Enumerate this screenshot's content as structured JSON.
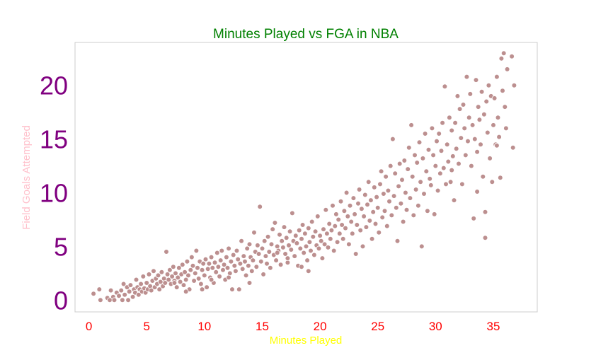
{
  "chart_data": {
    "type": "scatter",
    "title": "Minutes Played vs FGA in NBA",
    "xlabel": "Minutes Played",
    "ylabel": "Field Goals Attempted",
    "xlim": [
      -1.2,
      38.8
    ],
    "ylim": [
      -1.1,
      24.0
    ],
    "xticks": [
      0,
      5,
      10,
      15,
      20,
      25,
      30,
      35
    ],
    "yticks": [
      0,
      5,
      10,
      15,
      20
    ],
    "grid": false,
    "colors": {
      "title": "#008000",
      "xlabel": "#ffff00",
      "ylabel": "#ffc0cb",
      "xtick": "#ff0000",
      "ytick": "#800080",
      "point_fill": "#bc8f8f",
      "point_edge": "#ffffff",
      "frame": "#cccccc"
    },
    "points": [
      [
        0.4,
        0.6
      ],
      [
        0.9,
        1.0
      ],
      [
        1.0,
        0.0
      ],
      [
        1.6,
        0.2
      ],
      [
        1.8,
        0.0
      ],
      [
        1.9,
        0.9
      ],
      [
        2.1,
        0.3
      ],
      [
        2.2,
        0.0
      ],
      [
        2.4,
        0.7
      ],
      [
        2.6,
        0.4
      ],
      [
        2.8,
        0.9
      ],
      [
        2.9,
        0.0
      ],
      [
        3.0,
        1.5
      ],
      [
        3.1,
        0.5
      ],
      [
        3.3,
        1.2
      ],
      [
        3.4,
        0.0
      ],
      [
        3.5,
        0.8
      ],
      [
        3.6,
        1.4
      ],
      [
        3.8,
        0.3
      ],
      [
        3.9,
        1.0
      ],
      [
        4.0,
        0.7
      ],
      [
        4.1,
        1.9
      ],
      [
        4.2,
        1.2
      ],
      [
        4.3,
        0.5
      ],
      [
        4.4,
        1.0
      ],
      [
        4.5,
        1.5
      ],
      [
        4.6,
        0.8
      ],
      [
        4.7,
        2.2
      ],
      [
        4.8,
        1.1
      ],
      [
        4.9,
        0.7
      ],
      [
        5.0,
        1.6
      ],
      [
        5.1,
        1.0
      ],
      [
        5.2,
        2.4
      ],
      [
        5.3,
        1.3
      ],
      [
        5.4,
        0.9
      ],
      [
        5.5,
        1.8
      ],
      [
        5.6,
        2.7
      ],
      [
        5.7,
        1.2
      ],
      [
        5.8,
        2.0
      ],
      [
        5.9,
        1.5
      ],
      [
        6.0,
        2.3
      ],
      [
        6.1,
        1.0
      ],
      [
        6.2,
        1.7
      ],
      [
        6.3,
        2.6
      ],
      [
        6.4,
        1.3
      ],
      [
        6.5,
        2.0
      ],
      [
        6.6,
        1.6
      ],
      [
        6.7,
        4.5
      ],
      [
        6.8,
        2.4
      ],
      [
        6.9,
        1.9
      ],
      [
        7.0,
        2.8
      ],
      [
        7.1,
        1.5
      ],
      [
        7.2,
        2.2
      ],
      [
        7.3,
        3.1
      ],
      [
        7.4,
        1.8
      ],
      [
        7.5,
        2.5
      ],
      [
        7.6,
        1.2
      ],
      [
        7.7,
        2.1
      ],
      [
        7.8,
        3.0
      ],
      [
        7.9,
        1.7
      ],
      [
        8.0,
        2.4
      ],
      [
        8.1,
        3.3
      ],
      [
        8.2,
        1.4
      ],
      [
        8.3,
        2.6
      ],
      [
        8.4,
        1.9
      ],
      [
        8.5,
        3.6
      ],
      [
        8.6,
        2.3
      ],
      [
        8.7,
        1.0
      ],
      [
        8.8,
        2.8
      ],
      [
        8.9,
        4.0
      ],
      [
        9.0,
        3.2
      ],
      [
        9.1,
        1.8
      ],
      [
        9.2,
        2.5
      ],
      [
        9.3,
        4.6
      ],
      [
        9.4,
        3.0
      ],
      [
        9.5,
        2.0
      ],
      [
        9.6,
        3.6
      ],
      [
        9.7,
        1.5
      ],
      [
        9.8,
        2.8
      ],
      [
        9.9,
        3.4
      ],
      [
        10.0,
        2.3
      ],
      [
        10.1,
        3.8
      ],
      [
        10.2,
        1.2
      ],
      [
        10.3,
        2.9
      ],
      [
        10.4,
        3.4
      ],
      [
        10.5,
        2.1
      ],
      [
        10.6,
        4.0
      ],
      [
        10.7,
        3.0
      ],
      [
        10.8,
        1.6
      ],
      [
        10.9,
        3.5
      ],
      [
        11.0,
        2.6
      ],
      [
        11.1,
        4.4
      ],
      [
        11.2,
        3.1
      ],
      [
        11.3,
        2.2
      ],
      [
        11.4,
        3.7
      ],
      [
        11.5,
        4.6
      ],
      [
        11.6,
        2.8
      ],
      [
        11.7,
        3.3
      ],
      [
        11.8,
        1.9
      ],
      [
        11.9,
        4.0
      ],
      [
        12.0,
        3.0
      ],
      [
        12.1,
        4.8
      ],
      [
        12.2,
        2.5
      ],
      [
        12.3,
        3.6
      ],
      [
        12.4,
        1.0
      ],
      [
        12.5,
        4.2
      ],
      [
        12.6,
        3.2
      ],
      [
        12.7,
        2.7
      ],
      [
        12.8,
        4.6
      ],
      [
        12.9,
        3.8
      ],
      [
        13.0,
        1.0
      ],
      [
        13.1,
        3.4
      ],
      [
        13.2,
        5.5
      ],
      [
        13.3,
        2.9
      ],
      [
        13.4,
        4.1
      ],
      [
        13.5,
        3.6
      ],
      [
        13.6,
        2.3
      ],
      [
        13.7,
        4.8
      ],
      [
        13.8,
        3.2
      ],
      [
        13.9,
        5.2
      ],
      [
        14.0,
        4.0
      ],
      [
        14.1,
        2.7
      ],
      [
        14.2,
        3.7
      ],
      [
        14.3,
        6.3
      ],
      [
        14.4,
        4.5
      ],
      [
        14.5,
        3.1
      ],
      [
        14.6,
        5.1
      ],
      [
        14.7,
        4.3
      ],
      [
        14.8,
        8.7
      ],
      [
        14.9,
        3.6
      ],
      [
        15.0,
        4.8
      ],
      [
        15.1,
        2.4
      ],
      [
        15.2,
        5.5
      ],
      [
        15.3,
        4.1
      ],
      [
        15.4,
        3.4
      ],
      [
        15.5,
        5.9
      ],
      [
        15.6,
        4.5
      ],
      [
        15.7,
        3.0
      ],
      [
        15.8,
        5.2
      ],
      [
        15.9,
        6.6
      ],
      [
        16.0,
        4.2
      ],
      [
        16.1,
        7.2
      ],
      [
        16.2,
        3.7
      ],
      [
        16.3,
        5.0
      ],
      [
        16.4,
        4.6
      ],
      [
        16.5,
        6.1
      ],
      [
        16.6,
        3.3
      ],
      [
        16.7,
        5.5
      ],
      [
        16.8,
        4.9
      ],
      [
        16.9,
        6.8
      ],
      [
        17.0,
        4.3
      ],
      [
        17.1,
        5.8
      ],
      [
        17.2,
        3.5
      ],
      [
        17.3,
        5.1
      ],
      [
        17.4,
        6.4
      ],
      [
        17.5,
        4.7
      ],
      [
        17.6,
        8.1
      ],
      [
        17.7,
        5.5
      ],
      [
        17.8,
        4.1
      ],
      [
        17.9,
        6.0
      ],
      [
        18.0,
        5.3
      ],
      [
        18.1,
        3.2
      ],
      [
        18.2,
        6.5
      ],
      [
        18.3,
        4.8
      ],
      [
        18.4,
        5.7
      ],
      [
        18.5,
        7.0
      ],
      [
        18.6,
        4.4
      ],
      [
        18.7,
        6.2
      ],
      [
        18.8,
        5.0
      ],
      [
        18.9,
        3.7
      ],
      [
        19.0,
        6.7
      ],
      [
        19.1,
        5.4
      ],
      [
        19.2,
        4.6
      ],
      [
        19.3,
        7.3
      ],
      [
        19.4,
        5.9
      ],
      [
        19.5,
        4.2
      ],
      [
        19.6,
        6.4
      ],
      [
        19.7,
        5.1
      ],
      [
        19.8,
        7.8
      ],
      [
        19.9,
        4.8
      ],
      [
        20.0,
        6.0
      ],
      [
        20.1,
        5.5
      ],
      [
        20.2,
        3.9
      ],
      [
        20.3,
        6.6
      ],
      [
        20.4,
        5.2
      ],
      [
        20.5,
        8.4
      ],
      [
        20.6,
        6.2
      ],
      [
        20.7,
        4.9
      ],
      [
        20.8,
        7.1
      ],
      [
        20.9,
        5.7
      ],
      [
        21.0,
        6.5
      ],
      [
        21.1,
        8.8
      ],
      [
        21.2,
        4.6
      ],
      [
        21.3,
        6.9
      ],
      [
        21.4,
        8.0
      ],
      [
        21.5,
        5.4
      ],
      [
        21.6,
        7.5
      ],
      [
        21.7,
        6.2
      ],
      [
        21.8,
        9.2
      ],
      [
        21.9,
        7.0
      ],
      [
        22.0,
        5.7
      ],
      [
        22.1,
        8.3
      ],
      [
        22.2,
        6.7
      ],
      [
        22.3,
        10.0
      ],
      [
        22.4,
        7.8
      ],
      [
        22.5,
        5.2
      ],
      [
        22.6,
        8.8
      ],
      [
        22.7,
        7.3
      ],
      [
        22.8,
        6.2
      ],
      [
        22.9,
        9.5
      ],
      [
        23.0,
        8.0
      ],
      [
        23.1,
        4.3
      ],
      [
        23.2,
        7.0
      ],
      [
        23.3,
        9.0
      ],
      [
        23.4,
        10.3
      ],
      [
        23.5,
        6.5
      ],
      [
        23.6,
        8.5
      ],
      [
        23.7,
        5.0
      ],
      [
        23.8,
        7.8
      ],
      [
        23.9,
        9.8
      ],
      [
        24.0,
        6.8
      ],
      [
        24.1,
        8.9
      ],
      [
        24.2,
        11.0
      ],
      [
        24.3,
        7.4
      ],
      [
        24.4,
        9.3
      ],
      [
        24.5,
        5.7
      ],
      [
        24.6,
        8.2
      ],
      [
        24.7,
        10.5
      ],
      [
        24.8,
        7.1
      ],
      [
        24.9,
        9.6
      ],
      [
        25.0,
        8.6
      ],
      [
        25.1,
        6.3
      ],
      [
        25.2,
        10.8
      ],
      [
        25.3,
        12.0
      ],
      [
        25.4,
        7.7
      ],
      [
        25.5,
        9.9
      ],
      [
        25.6,
        8.3
      ],
      [
        25.7,
        11.5
      ],
      [
        25.8,
        6.9
      ],
      [
        25.9,
        10.2
      ],
      [
        26.0,
        9.2
      ],
      [
        26.1,
        12.5
      ],
      [
        26.2,
        7.9
      ],
      [
        26.3,
        15.0
      ],
      [
        26.4,
        9.7
      ],
      [
        26.5,
        11.8
      ],
      [
        26.6,
        8.6
      ],
      [
        26.7,
        5.5
      ],
      [
        26.8,
        10.6
      ],
      [
        26.9,
        12.7
      ],
      [
        27.0,
        9.0
      ],
      [
        27.1,
        11.2
      ],
      [
        27.2,
        7.3
      ],
      [
        27.3,
        13.0
      ],
      [
        27.4,
        10.0
      ],
      [
        27.5,
        8.4
      ],
      [
        27.6,
        12.2
      ],
      [
        27.7,
        14.2
      ],
      [
        27.8,
        9.5
      ],
      [
        27.9,
        16.3
      ],
      [
        28.0,
        11.5
      ],
      [
        28.1,
        7.9
      ],
      [
        28.2,
        13.5
      ],
      [
        28.3,
        10.3
      ],
      [
        28.4,
        12.8
      ],
      [
        28.5,
        8.8
      ],
      [
        28.6,
        14.7
      ],
      [
        28.7,
        11.0
      ],
      [
        28.8,
        5.0
      ],
      [
        28.9,
        13.2
      ],
      [
        29.0,
        9.9
      ],
      [
        29.1,
        15.5
      ],
      [
        29.2,
        12.0
      ],
      [
        29.3,
        8.3
      ],
      [
        29.4,
        14.0
      ],
      [
        29.5,
        11.3
      ],
      [
        29.6,
        10.7
      ],
      [
        29.7,
        16.0
      ],
      [
        29.8,
        13.5
      ],
      [
        29.9,
        8.0
      ],
      [
        30.0,
        12.5
      ],
      [
        30.1,
        14.8
      ],
      [
        30.2,
        10.2
      ],
      [
        30.3,
        15.5
      ],
      [
        30.4,
        11.8
      ],
      [
        30.5,
        13.9
      ],
      [
        30.6,
        16.5
      ],
      [
        30.7,
        12.3
      ],
      [
        30.8,
        19.9
      ],
      [
        30.9,
        10.8
      ],
      [
        31.0,
        14.5
      ],
      [
        31.1,
        12.9
      ],
      [
        31.2,
        17.0
      ],
      [
        31.3,
        11.0
      ],
      [
        31.4,
        15.8
      ],
      [
        31.5,
        13.4
      ],
      [
        31.6,
        9.3
      ],
      [
        31.7,
        16.5
      ],
      [
        31.8,
        14.1
      ],
      [
        31.9,
        19.0
      ],
      [
        32.0,
        12.7
      ],
      [
        32.1,
        17.8
      ],
      [
        32.2,
        15.1
      ],
      [
        32.3,
        10.8
      ],
      [
        32.4,
        18.2
      ],
      [
        32.5,
        16.0
      ],
      [
        32.6,
        13.5
      ],
      [
        32.7,
        20.8
      ],
      [
        32.8,
        14.8
      ],
      [
        32.9,
        17.0
      ],
      [
        33.0,
        19.2
      ],
      [
        33.1,
        12.5
      ],
      [
        33.2,
        16.3
      ],
      [
        33.3,
        7.6
      ],
      [
        33.4,
        15.0
      ],
      [
        33.5,
        20.5
      ],
      [
        33.6,
        13.8
      ],
      [
        33.7,
        18.0
      ],
      [
        33.8,
        16.8
      ],
      [
        33.9,
        14.5
      ],
      [
        34.0,
        19.4
      ],
      [
        34.1,
        11.5
      ],
      [
        34.2,
        17.3
      ],
      [
        34.3,
        5.8
      ],
      [
        34.4,
        18.5
      ],
      [
        34.5,
        15.6
      ],
      [
        34.6,
        20.0
      ],
      [
        34.7,
        13.2
      ],
      [
        34.8,
        19.0
      ],
      [
        34.9,
        11.0
      ],
      [
        35.0,
        16.3
      ],
      [
        35.1,
        18.8
      ],
      [
        35.2,
        14.5
      ],
      [
        35.3,
        20.8
      ],
      [
        35.4,
        17.0
      ],
      [
        35.5,
        15.2
      ],
      [
        35.6,
        11.4
      ],
      [
        35.7,
        22.5
      ],
      [
        35.8,
        19.5
      ],
      [
        35.9,
        23.0
      ],
      [
        36.0,
        18.0
      ],
      [
        36.1,
        16.0
      ],
      [
        36.2,
        21.5
      ],
      [
        36.6,
        22.7
      ],
      [
        36.8,
        20.0
      ],
      [
        36.7,
        14.2
      ],
      [
        35.3,
        14.4
      ],
      [
        34.3,
        8.2
      ],
      [
        33.6,
        10.1
      ],
      [
        31.4,
        12.1
      ],
      [
        16.3,
        4.4
      ],
      [
        17.2,
        3.9
      ],
      [
        18.4,
        3.1
      ],
      [
        19.0,
        2.7
      ],
      [
        13.9,
        1.6
      ],
      [
        12.1,
        2.1
      ],
      [
        10.6,
        1.9
      ],
      [
        9.8,
        1.0
      ],
      [
        8.4,
        0.8
      ],
      [
        7.4,
        1.6
      ]
    ]
  }
}
